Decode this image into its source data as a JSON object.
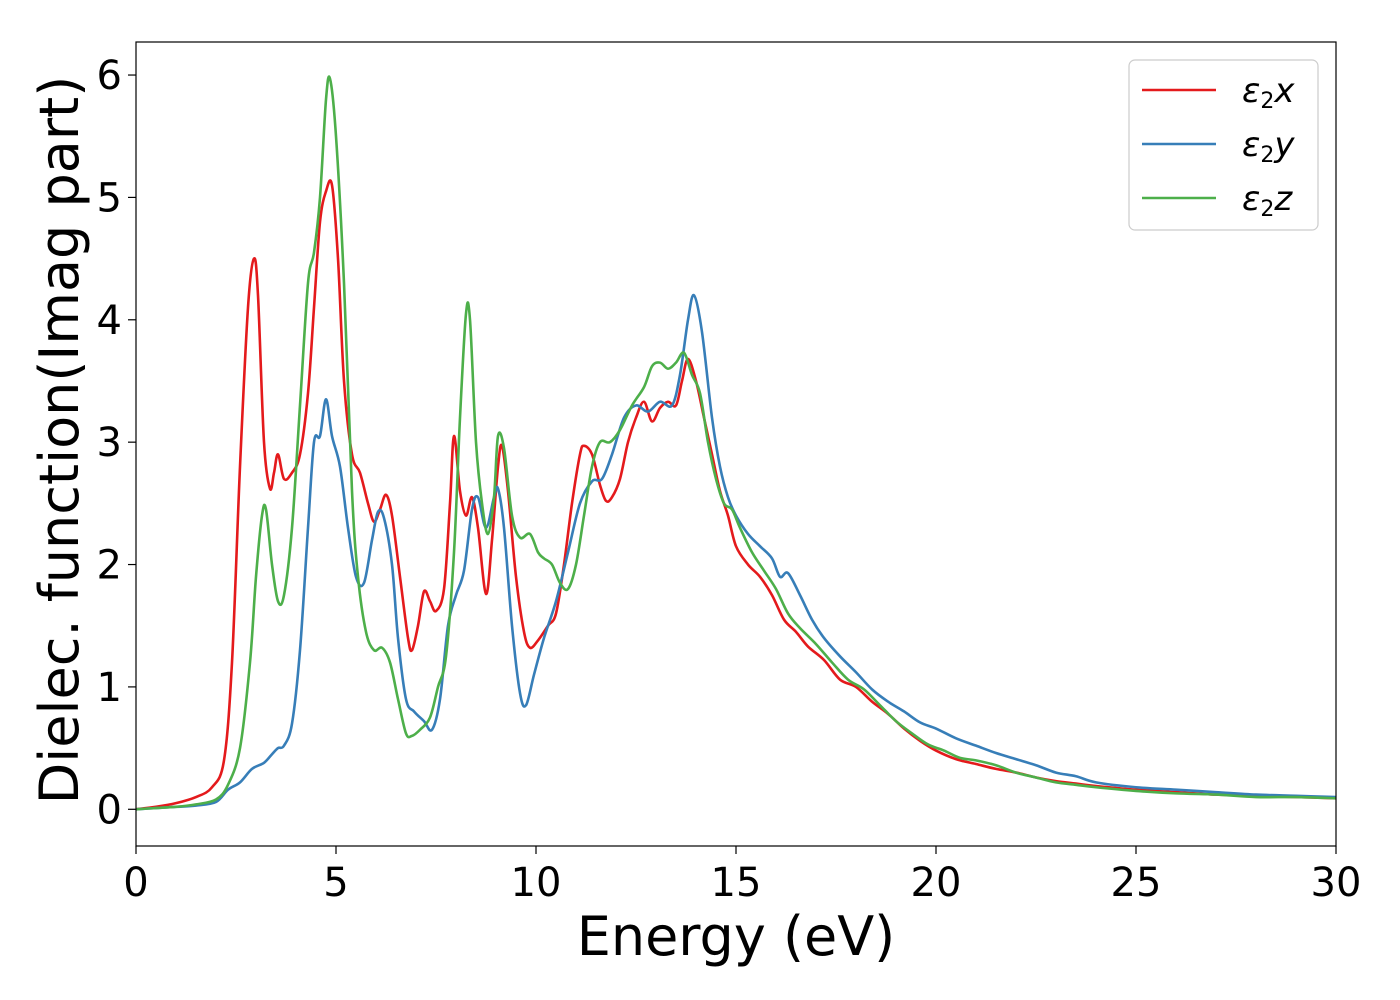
{
  "chart_data": {
    "type": "line",
    "xlabel": "Energy (eV)",
    "ylabel": "Dielec. function(Imag part)",
    "xlim": [
      0,
      30
    ],
    "ylim": [
      -0.3,
      6.27
    ],
    "xticks": [
      0,
      5,
      10,
      15,
      20,
      25,
      30
    ],
    "yticks": [
      0,
      1,
      2,
      3,
      4,
      5,
      6
    ],
    "grid": false,
    "legend_position": "top-right",
    "series": [
      {
        "name": "ε₂x",
        "legend": {
          "base": "ε",
          "sub": "2",
          "axis": "x"
        },
        "color": "#e41a1c",
        "points": [
          [
            0,
            0
          ],
          [
            0.5,
            0.02
          ],
          [
            1.0,
            0.05
          ],
          [
            1.5,
            0.1
          ],
          [
            1.9,
            0.18
          ],
          [
            2.2,
            0.4
          ],
          [
            2.4,
            1.2
          ],
          [
            2.6,
            2.8
          ],
          [
            2.8,
            4.1
          ],
          [
            2.95,
            4.5
          ],
          [
            3.05,
            4.2
          ],
          [
            3.2,
            3.0
          ],
          [
            3.35,
            2.62
          ],
          [
            3.45,
            2.75
          ],
          [
            3.55,
            2.9
          ],
          [
            3.7,
            2.7
          ],
          [
            3.9,
            2.75
          ],
          [
            4.1,
            2.9
          ],
          [
            4.3,
            3.4
          ],
          [
            4.45,
            4.1
          ],
          [
            4.6,
            4.8
          ],
          [
            4.75,
            5.05
          ],
          [
            4.9,
            5.1
          ],
          [
            5.05,
            4.5
          ],
          [
            5.2,
            3.5
          ],
          [
            5.4,
            2.9
          ],
          [
            5.6,
            2.75
          ],
          [
            5.8,
            2.5
          ],
          [
            5.95,
            2.35
          ],
          [
            6.1,
            2.45
          ],
          [
            6.25,
            2.57
          ],
          [
            6.4,
            2.4
          ],
          [
            6.6,
            1.9
          ],
          [
            6.8,
            1.4
          ],
          [
            6.9,
            1.3
          ],
          [
            7.05,
            1.5
          ],
          [
            7.2,
            1.78
          ],
          [
            7.35,
            1.7
          ],
          [
            7.5,
            1.62
          ],
          [
            7.7,
            1.8
          ],
          [
            7.85,
            2.5
          ],
          [
            7.95,
            3.05
          ],
          [
            8.1,
            2.6
          ],
          [
            8.25,
            2.4
          ],
          [
            8.4,
            2.55
          ],
          [
            8.55,
            2.3
          ],
          [
            8.75,
            1.76
          ],
          [
            8.9,
            2.2
          ],
          [
            9.05,
            2.8
          ],
          [
            9.15,
            2.97
          ],
          [
            9.3,
            2.6
          ],
          [
            9.5,
            1.9
          ],
          [
            9.7,
            1.45
          ],
          [
            9.85,
            1.32
          ],
          [
            10.05,
            1.38
          ],
          [
            10.3,
            1.5
          ],
          [
            10.5,
            1.6
          ],
          [
            10.7,
            2.0
          ],
          [
            10.9,
            2.5
          ],
          [
            11.1,
            2.9
          ],
          [
            11.2,
            2.97
          ],
          [
            11.4,
            2.9
          ],
          [
            11.6,
            2.65
          ],
          [
            11.75,
            2.52
          ],
          [
            11.9,
            2.55
          ],
          [
            12.1,
            2.7
          ],
          [
            12.3,
            3.0
          ],
          [
            12.5,
            3.2
          ],
          [
            12.7,
            3.33
          ],
          [
            12.9,
            3.17
          ],
          [
            13.1,
            3.28
          ],
          [
            13.3,
            3.33
          ],
          [
            13.5,
            3.3
          ],
          [
            13.65,
            3.5
          ],
          [
            13.8,
            3.68
          ],
          [
            14.0,
            3.5
          ],
          [
            14.2,
            3.2
          ],
          [
            14.4,
            2.9
          ],
          [
            14.6,
            2.6
          ],
          [
            14.8,
            2.4
          ],
          [
            15.0,
            2.15
          ],
          [
            15.3,
            2.0
          ],
          [
            15.6,
            1.9
          ],
          [
            15.9,
            1.75
          ],
          [
            16.2,
            1.55
          ],
          [
            16.5,
            1.45
          ],
          [
            16.8,
            1.33
          ],
          [
            17.2,
            1.22
          ],
          [
            17.6,
            1.06
          ],
          [
            18.0,
            1.0
          ],
          [
            18.4,
            0.88
          ],
          [
            18.8,
            0.78
          ],
          [
            19.2,
            0.66
          ],
          [
            19.6,
            0.56
          ],
          [
            20.0,
            0.48
          ],
          [
            20.5,
            0.41
          ],
          [
            21.0,
            0.37
          ],
          [
            21.5,
            0.33
          ],
          [
            22.0,
            0.3
          ],
          [
            22.5,
            0.26
          ],
          [
            23.0,
            0.23
          ],
          [
            23.5,
            0.21
          ],
          [
            24.0,
            0.19
          ],
          [
            25.0,
            0.16
          ],
          [
            26.0,
            0.14
          ],
          [
            27.0,
            0.12
          ],
          [
            28.0,
            0.11
          ],
          [
            29.0,
            0.1
          ],
          [
            30.0,
            0.09
          ]
        ]
      },
      {
        "name": "ε₂y",
        "legend": {
          "base": "ε",
          "sub": "2",
          "axis": "y"
        },
        "color": "#377eb8",
        "points": [
          [
            0,
            0
          ],
          [
            0.5,
            0.01
          ],
          [
            1.0,
            0.02
          ],
          [
            1.5,
            0.03
          ],
          [
            2.0,
            0.06
          ],
          [
            2.3,
            0.16
          ],
          [
            2.6,
            0.22
          ],
          [
            2.9,
            0.33
          ],
          [
            3.2,
            0.38
          ],
          [
            3.4,
            0.45
          ],
          [
            3.55,
            0.5
          ],
          [
            3.7,
            0.52
          ],
          [
            3.9,
            0.7
          ],
          [
            4.1,
            1.3
          ],
          [
            4.3,
            2.3
          ],
          [
            4.45,
            3.0
          ],
          [
            4.6,
            3.05
          ],
          [
            4.75,
            3.35
          ],
          [
            4.9,
            3.05
          ],
          [
            5.1,
            2.8
          ],
          [
            5.3,
            2.3
          ],
          [
            5.5,
            1.9
          ],
          [
            5.7,
            1.85
          ],
          [
            5.9,
            2.2
          ],
          [
            6.05,
            2.43
          ],
          [
            6.2,
            2.38
          ],
          [
            6.4,
            2.0
          ],
          [
            6.55,
            1.4
          ],
          [
            6.75,
            0.9
          ],
          [
            6.95,
            0.8
          ],
          [
            7.2,
            0.72
          ],
          [
            7.4,
            0.65
          ],
          [
            7.6,
            0.9
          ],
          [
            7.8,
            1.5
          ],
          [
            8.0,
            1.75
          ],
          [
            8.2,
            1.95
          ],
          [
            8.4,
            2.45
          ],
          [
            8.55,
            2.55
          ],
          [
            8.75,
            2.3
          ],
          [
            8.95,
            2.55
          ],
          [
            9.05,
            2.62
          ],
          [
            9.2,
            2.3
          ],
          [
            9.4,
            1.5
          ],
          [
            9.6,
            0.95
          ],
          [
            9.75,
            0.85
          ],
          [
            9.95,
            1.1
          ],
          [
            10.2,
            1.4
          ],
          [
            10.5,
            1.7
          ],
          [
            10.8,
            2.1
          ],
          [
            11.1,
            2.5
          ],
          [
            11.4,
            2.68
          ],
          [
            11.65,
            2.7
          ],
          [
            11.9,
            2.9
          ],
          [
            12.2,
            3.2
          ],
          [
            12.5,
            3.3
          ],
          [
            12.8,
            3.25
          ],
          [
            13.1,
            3.33
          ],
          [
            13.4,
            3.3
          ],
          [
            13.6,
            3.55
          ],
          [
            13.8,
            4.0
          ],
          [
            13.95,
            4.2
          ],
          [
            14.15,
            3.9
          ],
          [
            14.4,
            3.2
          ],
          [
            14.6,
            2.8
          ],
          [
            14.8,
            2.55
          ],
          [
            15.0,
            2.4
          ],
          [
            15.3,
            2.25
          ],
          [
            15.6,
            2.15
          ],
          [
            15.9,
            2.05
          ],
          [
            16.1,
            1.9
          ],
          [
            16.3,
            1.93
          ],
          [
            16.6,
            1.75
          ],
          [
            16.9,
            1.55
          ],
          [
            17.2,
            1.4
          ],
          [
            17.6,
            1.25
          ],
          [
            18.0,
            1.12
          ],
          [
            18.4,
            0.98
          ],
          [
            18.8,
            0.88
          ],
          [
            19.2,
            0.8
          ],
          [
            19.6,
            0.71
          ],
          [
            20.0,
            0.66
          ],
          [
            20.5,
            0.58
          ],
          [
            21.0,
            0.52
          ],
          [
            21.5,
            0.46
          ],
          [
            22.0,
            0.41
          ],
          [
            22.5,
            0.36
          ],
          [
            23.0,
            0.3
          ],
          [
            23.5,
            0.27
          ],
          [
            24.0,
            0.22
          ],
          [
            25.0,
            0.18
          ],
          [
            26.0,
            0.16
          ],
          [
            27.0,
            0.14
          ],
          [
            28.0,
            0.12
          ],
          [
            29.0,
            0.11
          ],
          [
            30.0,
            0.1
          ]
        ]
      },
      {
        "name": "ε₂z",
        "legend": {
          "base": "ε",
          "sub": "2",
          "axis": "z"
        },
        "color": "#4daf4a",
        "points": [
          [
            0,
            0
          ],
          [
            0.5,
            0.01
          ],
          [
            1.0,
            0.02
          ],
          [
            1.5,
            0.04
          ],
          [
            2.0,
            0.08
          ],
          [
            2.3,
            0.2
          ],
          [
            2.6,
            0.5
          ],
          [
            2.85,
            1.2
          ],
          [
            3.0,
            1.9
          ],
          [
            3.15,
            2.4
          ],
          [
            3.25,
            2.45
          ],
          [
            3.4,
            2.0
          ],
          [
            3.55,
            1.7
          ],
          [
            3.7,
            1.75
          ],
          [
            3.9,
            2.3
          ],
          [
            4.1,
            3.3
          ],
          [
            4.3,
            4.3
          ],
          [
            4.45,
            4.55
          ],
          [
            4.6,
            5.0
          ],
          [
            4.75,
            5.8
          ],
          [
            4.85,
            5.97
          ],
          [
            5.0,
            5.5
          ],
          [
            5.2,
            4.3
          ],
          [
            5.4,
            2.6
          ],
          [
            5.55,
            1.9
          ],
          [
            5.75,
            1.45
          ],
          [
            5.95,
            1.3
          ],
          [
            6.15,
            1.32
          ],
          [
            6.35,
            1.2
          ],
          [
            6.55,
            0.9
          ],
          [
            6.75,
            0.62
          ],
          [
            6.9,
            0.6
          ],
          [
            7.1,
            0.65
          ],
          [
            7.35,
            0.75
          ],
          [
            7.55,
            1.0
          ],
          [
            7.75,
            1.25
          ],
          [
            7.95,
            2.1
          ],
          [
            8.1,
            3.2
          ],
          [
            8.25,
            4.05
          ],
          [
            8.35,
            4.0
          ],
          [
            8.5,
            3.0
          ],
          [
            8.65,
            2.5
          ],
          [
            8.8,
            2.25
          ],
          [
            8.95,
            2.55
          ],
          [
            9.05,
            3.05
          ],
          [
            9.2,
            2.95
          ],
          [
            9.4,
            2.4
          ],
          [
            9.6,
            2.22
          ],
          [
            9.85,
            2.25
          ],
          [
            10.05,
            2.1
          ],
          [
            10.2,
            2.05
          ],
          [
            10.4,
            2.0
          ],
          [
            10.6,
            1.85
          ],
          [
            10.8,
            1.8
          ],
          [
            11.0,
            2.0
          ],
          [
            11.2,
            2.4
          ],
          [
            11.4,
            2.8
          ],
          [
            11.6,
            3.0
          ],
          [
            11.85,
            3.0
          ],
          [
            12.1,
            3.1
          ],
          [
            12.4,
            3.3
          ],
          [
            12.7,
            3.45
          ],
          [
            12.9,
            3.62
          ],
          [
            13.1,
            3.65
          ],
          [
            13.3,
            3.6
          ],
          [
            13.5,
            3.65
          ],
          [
            13.7,
            3.73
          ],
          [
            13.9,
            3.55
          ],
          [
            14.1,
            3.4
          ],
          [
            14.3,
            3.0
          ],
          [
            14.5,
            2.7
          ],
          [
            14.7,
            2.5
          ],
          [
            14.9,
            2.45
          ],
          [
            15.1,
            2.3
          ],
          [
            15.4,
            2.1
          ],
          [
            15.7,
            1.95
          ],
          [
            16.0,
            1.8
          ],
          [
            16.3,
            1.6
          ],
          [
            16.6,
            1.48
          ],
          [
            17.0,
            1.35
          ],
          [
            17.4,
            1.2
          ],
          [
            17.8,
            1.06
          ],
          [
            18.2,
            0.98
          ],
          [
            18.6,
            0.85
          ],
          [
            19.0,
            0.72
          ],
          [
            19.4,
            0.62
          ],
          [
            19.8,
            0.53
          ],
          [
            20.2,
            0.48
          ],
          [
            20.6,
            0.42
          ],
          [
            21.0,
            0.4
          ],
          [
            21.5,
            0.36
          ],
          [
            22.0,
            0.3
          ],
          [
            22.5,
            0.26
          ],
          [
            23.0,
            0.22
          ],
          [
            23.5,
            0.2
          ],
          [
            24.0,
            0.18
          ],
          [
            25.0,
            0.15
          ],
          [
            26.0,
            0.13
          ],
          [
            27.0,
            0.12
          ],
          [
            28.0,
            0.1
          ],
          [
            29.0,
            0.1
          ],
          [
            30.0,
            0.09
          ]
        ]
      }
    ]
  }
}
